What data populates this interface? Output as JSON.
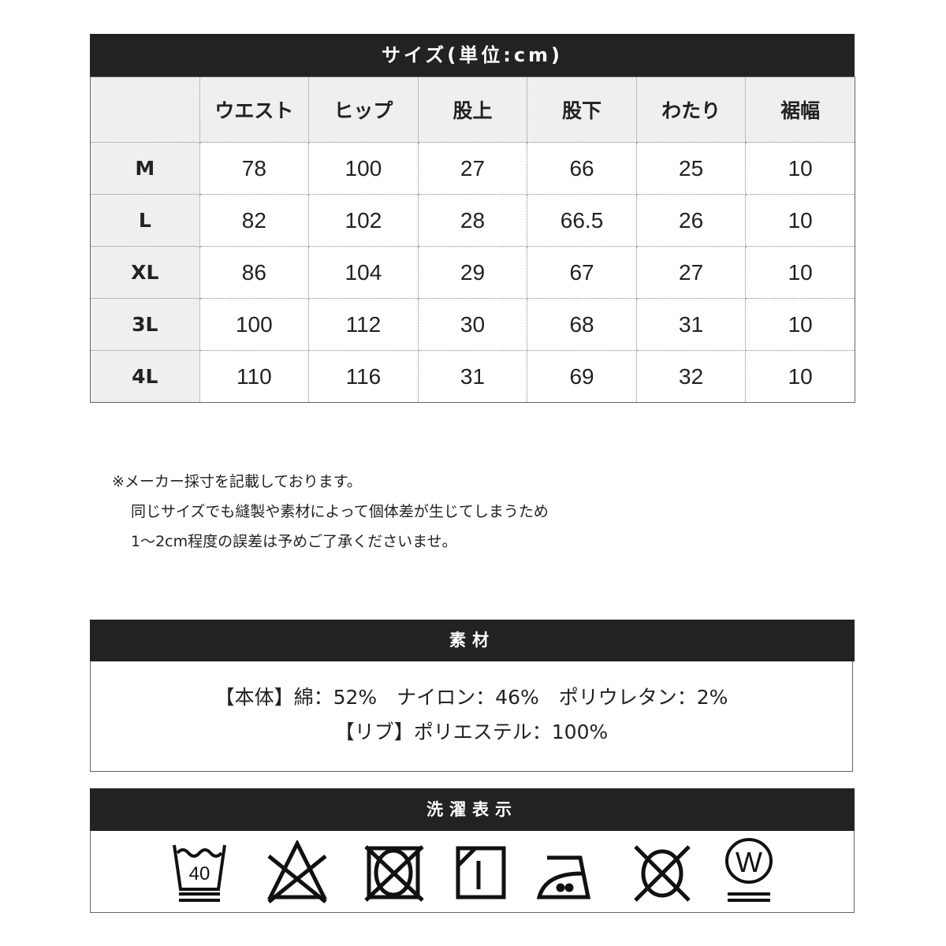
{
  "size_table": {
    "title": "サイズ(単位:cm)",
    "headers": [
      "",
      "ウエスト",
      "ヒップ",
      "股上",
      "股下",
      "わたり",
      "裾幅"
    ],
    "rows": [
      {
        "size": "M",
        "values": [
          "78",
          "100",
          "27",
          "66",
          "25",
          "10"
        ]
      },
      {
        "size": "L",
        "values": [
          "82",
          "102",
          "28",
          "66.5",
          "26",
          "10"
        ]
      },
      {
        "size": "XL",
        "values": [
          "86",
          "104",
          "29",
          "67",
          "27",
          "10"
        ]
      },
      {
        "size": "3L",
        "values": [
          "100",
          "112",
          "30",
          "68",
          "31",
          "10"
        ]
      },
      {
        "size": "4L",
        "values": [
          "110",
          "116",
          "31",
          "69",
          "32",
          "10"
        ]
      }
    ]
  },
  "note": {
    "lines": [
      "※メーカー採寸を記載しております。",
      "同じサイズでも縫製や素材によって個体差が生じてしまうため",
      "1～2cm程度の誤差は予めご了承くださいませ。"
    ]
  },
  "material": {
    "title": "素材",
    "lines": [
      "【本体】綿：52%　ナイロン：46%　ポリウレタン：2%",
      "【リブ】ポリエステル：100%"
    ]
  },
  "care": {
    "title": "洗濯表示",
    "icons": [
      {
        "name": "wash-40-very-gentle-icon",
        "label": "40"
      },
      {
        "name": "no-bleach-icon"
      },
      {
        "name": "no-tumble-dry-icon"
      },
      {
        "name": "line-dry-shade-icon"
      },
      {
        "name": "iron-medium-icon"
      },
      {
        "name": "no-dry-clean-icon"
      },
      {
        "name": "wet-clean-very-gentle-icon",
        "label": "W"
      }
    ]
  }
}
